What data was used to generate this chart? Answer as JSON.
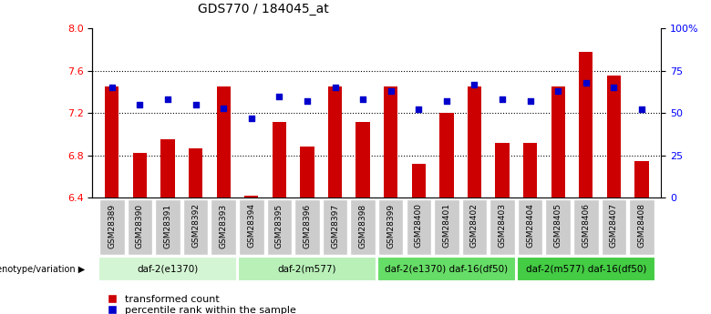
{
  "title": "GDS770 / 184045_at",
  "samples": [
    "GSM28389",
    "GSM28390",
    "GSM28391",
    "GSM28392",
    "GSM28393",
    "GSM28394",
    "GSM28395",
    "GSM28396",
    "GSM28397",
    "GSM28398",
    "GSM28399",
    "GSM28400",
    "GSM28401",
    "GSM28402",
    "GSM28403",
    "GSM28404",
    "GSM28405",
    "GSM28406",
    "GSM28407",
    "GSM28408"
  ],
  "bar_values": [
    7.45,
    6.82,
    6.95,
    6.87,
    7.45,
    6.42,
    7.12,
    6.88,
    7.45,
    7.12,
    7.45,
    6.72,
    7.2,
    7.45,
    6.92,
    6.92,
    7.45,
    7.78,
    7.55,
    6.75
  ],
  "dot_values": [
    65,
    55,
    58,
    55,
    53,
    47,
    60,
    57,
    65,
    58,
    63,
    52,
    57,
    67,
    58,
    57,
    63,
    68,
    65,
    52
  ],
  "groups": [
    {
      "label": "daf-2(e1370)",
      "start": 0,
      "end": 5,
      "color": "#d4f5d4"
    },
    {
      "label": "daf-2(m577)",
      "start": 5,
      "end": 10,
      "color": "#b8f0b8"
    },
    {
      "label": "daf-2(e1370) daf-16(df50)",
      "start": 10,
      "end": 15,
      "color": "#66dd66"
    },
    {
      "label": "daf-2(m577) daf-16(df50)",
      "start": 15,
      "end": 20,
      "color": "#44cc44"
    }
  ],
  "ylim_left": [
    6.4,
    8.0
  ],
  "ylim_right": [
    0,
    100
  ],
  "yticks_left": [
    6.4,
    6.8,
    7.2,
    7.6,
    8.0
  ],
  "yticks_right": [
    0,
    25,
    50,
    75,
    100
  ],
  "bar_color": "#cc0000",
  "dot_color": "#0000cc",
  "bar_bottom": 6.4,
  "sample_bg_color": "#cccccc",
  "legend_items": [
    "transformed count",
    "percentile rank within the sample"
  ]
}
